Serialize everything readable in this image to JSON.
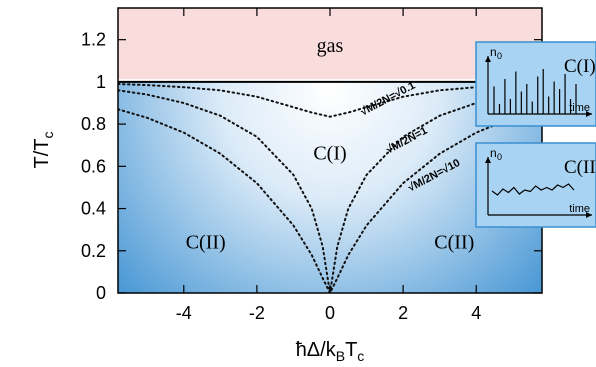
{
  "chart_data": {
    "type": "phase-diagram",
    "xlabel": "ħΔ/k",
    "xlabel_sub": "B",
    "xlabel_tail": "T",
    "xlabel_tail_sub": "c",
    "ylabel": "T/T",
    "ylabel_sub": "c",
    "xlim": [
      -5.8,
      5.8
    ],
    "ylim": [
      0,
      1.35
    ],
    "x_ticks": [
      -4,
      -2,
      0,
      2,
      4
    ],
    "x_tick_labels": [
      "-4",
      "-2",
      "0",
      "2",
      "4"
    ],
    "y_ticks": [
      0,
      0.2,
      0.4,
      0.6,
      0.8,
      1,
      1.2
    ],
    "y_tick_labels": [
      "0",
      "0.2",
      "0.4",
      "0.6",
      "0.8",
      "1",
      "1.2"
    ],
    "phase_boundary_T": 1,
    "region_labels": [
      {
        "text": "gas",
        "x": 0,
        "y": 1.17
      },
      {
        "text": "C(I)",
        "x": 0,
        "y": 0.66
      },
      {
        "text": "C(II)",
        "x": -3.4,
        "y": 0.24
      },
      {
        "text": "C(II)",
        "x": 3.4,
        "y": 0.24
      }
    ],
    "series": [
      {
        "name": "√M/2N=√0.1",
        "x": [
          -5.8,
          -5,
          -4,
          -3,
          -2,
          -1,
          -0.5,
          0,
          0.5,
          1,
          2,
          3,
          4,
          5,
          5.8
        ],
        "y": [
          0.99,
          0.985,
          0.975,
          0.96,
          0.93,
          0.88,
          0.855,
          0.835,
          0.855,
          0.88,
          0.93,
          0.96,
          0.975,
          0.985,
          0.99
        ],
        "label_x": 0.9,
        "label_y": 0.84
      },
      {
        "name": "√M/2N=1",
        "x": [
          -5.8,
          -5,
          -4,
          -3,
          -2,
          -1,
          -0.5,
          -0.2,
          0,
          0.2,
          0.5,
          1,
          2,
          3,
          4,
          5,
          5.8
        ],
        "y": [
          0.96,
          0.94,
          0.9,
          0.84,
          0.74,
          0.56,
          0.4,
          0.22,
          0,
          0.22,
          0.4,
          0.56,
          0.74,
          0.84,
          0.9,
          0.94,
          0.96
        ],
        "label_x": 1.6,
        "label_y": 0.66
      },
      {
        "name": "√M/2N=√10",
        "x": [
          -5.8,
          -5,
          -4,
          -3,
          -2,
          -1,
          -0.5,
          -0.2,
          0,
          0.2,
          0.5,
          1,
          2,
          3,
          4,
          5,
          5.8
        ],
        "y": [
          0.87,
          0.83,
          0.76,
          0.66,
          0.52,
          0.32,
          0.18,
          0.07,
          0,
          0.07,
          0.18,
          0.32,
          0.52,
          0.66,
          0.76,
          0.83,
          0.87
        ],
        "label_x": 2.2,
        "label_y": 0.48
      }
    ],
    "colors": {
      "gas_fill": "#f9dcdc",
      "cond_center": "#ffffff",
      "cond_edge": "#3a8fd1",
      "curve": "#111111",
      "inset_fill": "#a8d3f2",
      "inset_border": "#3a8fd1"
    },
    "insets": [
      {
        "ylabel": "n",
        "ylabel_sub": "0",
        "xlabel": "time",
        "title": "C(I)",
        "signal": "spikes",
        "values": [
          0.55,
          0.2,
          0.7,
          0.3,
          0.85,
          0.45,
          0.6,
          0.25,
          0.75,
          0.9,
          0.35,
          0.65,
          0.5,
          0.8,
          0.3,
          0.6
        ]
      },
      {
        "ylabel": "n",
        "ylabel_sub": "0",
        "xlabel": "time",
        "title": "C(II)",
        "signal": "fluctuating",
        "values": [
          0.48,
          0.4,
          0.52,
          0.45,
          0.55,
          0.42,
          0.5,
          0.47,
          0.58,
          0.5,
          0.55,
          0.5,
          0.6,
          0.55,
          0.62,
          0.5
        ]
      }
    ]
  }
}
